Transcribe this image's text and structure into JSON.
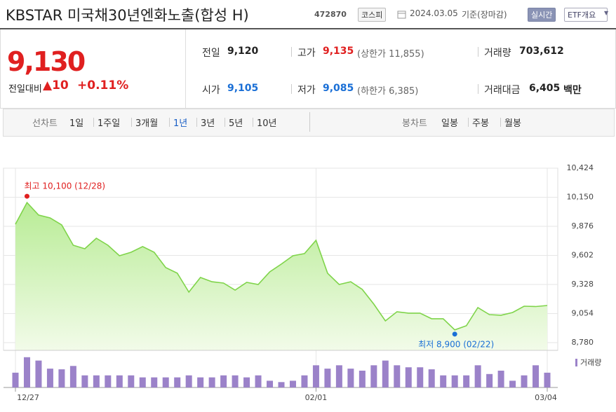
{
  "header": {
    "title": "KBSTAR 미국채30년엔화노출(합성 H)",
    "code": "472870",
    "market": "코스피",
    "date": "2024.03.05",
    "basis": "기준(장마감)",
    "realtime_button": "실시간",
    "overview_button": "ETF개요"
  },
  "quote": {
    "price": "9,130",
    "change_label": "전일대비",
    "change": "10",
    "change_rate": "+0.11%",
    "rows": [
      [
        {
          "label": "전일",
          "value": "9,120"
        },
        {
          "label": "고가",
          "value": "9,135",
          "extra": "(상한가 11,855)"
        },
        {
          "label": "거래량",
          "value": "703,612"
        }
      ],
      [
        {
          "label": "시가",
          "value": "9,105"
        },
        {
          "label": "저가",
          "value": "9,085",
          "extra": "(하한가 6,385)"
        },
        {
          "label": "거래대금",
          "value": "6,405",
          "unit": "백만"
        }
      ]
    ]
  },
  "tabs": {
    "line_label": "선차트",
    "line_periods": [
      "1일",
      "1주일",
      "3개월",
      "1년",
      "3년",
      "5년",
      "10년"
    ],
    "selected": "1년",
    "candle_label": "봉차트",
    "candle_periods": [
      "일봉",
      "주봉",
      "월봉"
    ]
  },
  "chart_data": {
    "type": "line",
    "categories": [
      "12/27",
      null,
      null,
      null,
      null,
      null,
      null,
      null,
      null,
      null,
      null,
      null,
      null,
      null,
      null,
      null,
      null,
      null,
      null,
      null,
      null,
      null,
      null,
      null,
      null,
      null,
      "02/01",
      null,
      null,
      null,
      null,
      null,
      null,
      null,
      null,
      null,
      null,
      null,
      null,
      null,
      null,
      null,
      null,
      null,
      null,
      null,
      "03/04"
    ],
    "values": [
      9896,
      10100,
      9982,
      9955,
      9889,
      9698,
      9665,
      9764,
      9698,
      9599,
      9632,
      9685,
      9632,
      9487,
      9434,
      9256,
      9394,
      9354,
      9341,
      9275,
      9348,
      9328,
      9447,
      9520,
      9599,
      9619,
      9744,
      9434,
      9328,
      9354,
      9282,
      9143,
      8985,
      9071,
      9058,
      9058,
      9005,
      9005,
      8900,
      8939,
      9110,
      9044,
      9038,
      9064,
      9123,
      9120,
      9130
    ],
    "color": "#7fd44a",
    "ylim": [
      8780,
      10424
    ],
    "yticks": [
      {
        "value": 10424,
        "label": "10,424"
      },
      {
        "value": 10150,
        "label": "10,150"
      },
      {
        "value": 9876,
        "label": "9,876"
      },
      {
        "value": 9602,
        "label": "9,602"
      },
      {
        "value": 9328,
        "label": "9,328"
      },
      {
        "value": 9054,
        "label": "9,054"
      },
      {
        "value": 8780,
        "label": "8,780"
      }
    ],
    "grid": true,
    "annotations": [
      {
        "index": 1,
        "text": "최고 10,100 (12/28)",
        "color": "#e02020"
      },
      {
        "index": 38,
        "text": "최저 8,900 (02/22)",
        "color": "#1a6fd6"
      }
    ],
    "volume": {
      "name": "거래량",
      "color": "#9b82c9",
      "ylim": [
        0,
        1600000
      ],
      "values": [
        704000,
        1440000,
        1280000,
        896000,
        864000,
        1024000,
        576000,
        576000,
        576000,
        576000,
        576000,
        480000,
        480000,
        480000,
        480000,
        576000,
        480000,
        480000,
        576000,
        576000,
        480000,
        576000,
        320000,
        256000,
        320000,
        576000,
        1056000,
        896000,
        1056000,
        896000,
        800000,
        1056000,
        1280000,
        1056000,
        960000,
        960000,
        864000,
        576000,
        576000,
        576000,
        1056000,
        640000,
        800000,
        320000,
        576000,
        1056000,
        703612
      ]
    }
  }
}
